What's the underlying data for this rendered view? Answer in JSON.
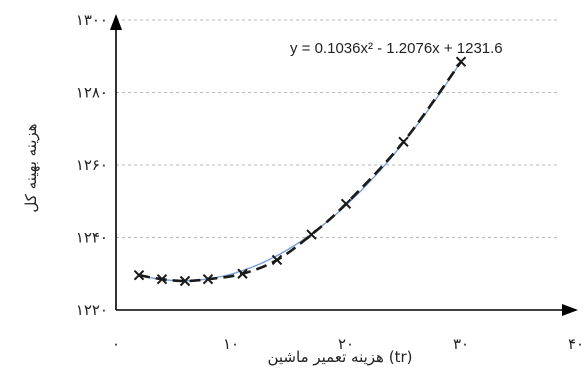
{
  "chart_data": {
    "type": "scatter",
    "xlabel": "هزینه تعمیر ماشین (tr)",
    "ylabel": "هزینه بهینه کل",
    "x_ticks": [
      "۰",
      "۱۰",
      "۲۰",
      "۳۰",
      "۴۰"
    ],
    "y_ticks": [
      "۱۲۲۰",
      "۱۲۴۰",
      "۱۲۶۰",
      "۱۲۸۰",
      "۱۳۰۰"
    ],
    "xlim": [
      0,
      40
    ],
    "ylim": [
      1220,
      1300
    ],
    "grid": true,
    "trendline": {
      "type": "polynomial",
      "equation": "y = 0.1036x² - 1.2076x + 1231.6",
      "coefficients": [
        0.1036,
        -1.2076,
        1231.6
      ]
    },
    "series": [
      {
        "marker": "x",
        "line_style": "dashed",
        "color": "#1a1a1a",
        "x": [
          2,
          4,
          6,
          8,
          11,
          14,
          17,
          20,
          25,
          30
        ],
        "y": [
          1229.6,
          1228.5,
          1228.0,
          1228.5,
          1230.0,
          1233.8,
          1240.8,
          1249.3,
          1266.4,
          1288.5
        ]
      }
    ]
  }
}
